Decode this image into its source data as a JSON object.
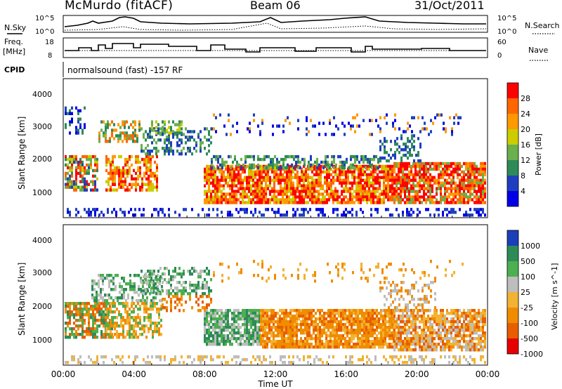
{
  "header": {
    "station": "McMurdo (fitACF)",
    "beam": "Beam 06",
    "date": "31/Oct/2011"
  },
  "top_panels": {
    "nsky_label": "N.Sky",
    "nsearch_label": "N.Search",
    "nsky_ticks": [
      "10^5",
      "10^0"
    ],
    "nsearch_ticks": [
      "10^5",
      "10^0"
    ],
    "freq_label": "Freq.",
    "freq_unit": "[MHz]",
    "freq_ticks": [
      "18",
      "8"
    ],
    "nave_label": "Nave",
    "nave_ticks": [
      "60",
      "0"
    ],
    "cpid_label": "CPID",
    "cpid_text": "normalsound (fast) -157 RF"
  },
  "colors": {
    "power": [
      "#0000e6",
      "#1f3fc0",
      "#2e8b57",
      "#6ab04c",
      "#cccc00",
      "#ff9900",
      "#ff6600",
      "#ff0000"
    ],
    "velocity": [
      "#1a3fb8",
      "#2e8b57",
      "#4caf50",
      "#bdbdbd",
      "#f2b233",
      "#f08c00",
      "#e85d00",
      "#e60000"
    ]
  },
  "chart_data": [
    {
      "type": "heatmap",
      "name": "power",
      "ylabel": "Slant Range [km]",
      "yticks": [
        "1000",
        "2000",
        "3000",
        "4000"
      ],
      "colorbar_label": "Power [dB]",
      "colorbar_ticks": [
        "4",
        "8",
        "12",
        "16",
        "20",
        "24",
        "28"
      ]
    },
    {
      "type": "heatmap",
      "name": "velocity",
      "ylabel": "Slant Range [km]",
      "yticks": [
        "1000",
        "2000",
        "3000",
        "4000"
      ],
      "colorbar_label": "Velocity [m s^-1]",
      "colorbar_ticks": [
        "1000",
        "500",
        "100",
        "25",
        "-25",
        "-100",
        "-500",
        "-1000"
      ],
      "xlabel": "Time UT",
      "xticks": [
        "00:00",
        "04:00",
        "08:00",
        "12:00",
        "16:00",
        "20:00",
        "00:00"
      ]
    }
  ]
}
